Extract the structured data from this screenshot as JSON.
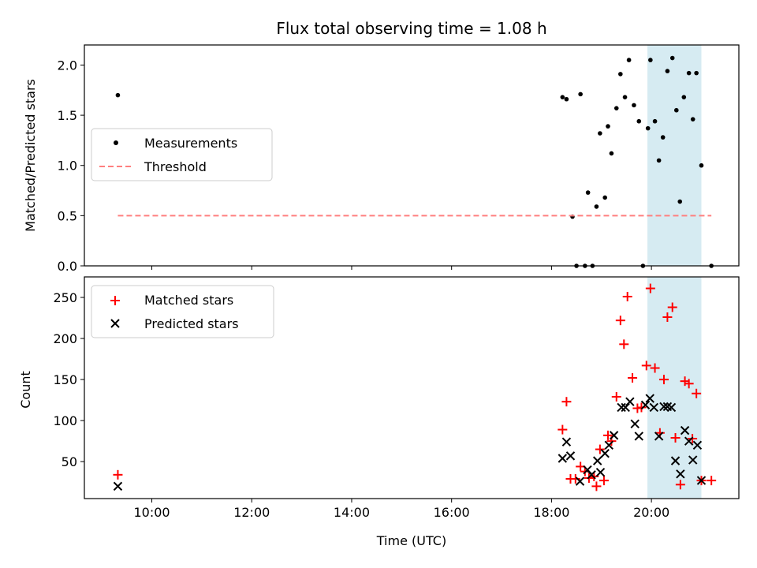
{
  "chart_data": [
    {
      "type": "scatter",
      "title": "Flux total observing time = 1.08 h",
      "xlabel": "",
      "ylabel": "Matched/Predicted stars",
      "xlim": [
        8.65,
        21.75
      ],
      "ylim": [
        0,
        2.2
      ],
      "yticks": [
        0.0,
        0.5,
        1.0,
        1.5,
        2.0
      ],
      "ytick_labels": [
        "0.0",
        "0.5",
        "1.0",
        "1.5",
        "2.0"
      ],
      "xticks": [
        10,
        12,
        14,
        16,
        18,
        20
      ],
      "shaded_span": {
        "x0": 19.92,
        "x1": 21.0,
        "color": "#add8e6"
      },
      "legend": {
        "placement": "center-left",
        "entries": [
          "Measurements",
          "Threshold"
        ]
      },
      "series": [
        {
          "name": "Measurements",
          "marker": "dot",
          "color": "#000000",
          "points": [
            [
              9.32,
              1.7
            ],
            [
              18.22,
              1.68
            ],
            [
              18.3,
              1.66
            ],
            [
              18.42,
              0.49
            ],
            [
              18.5,
              0.0
            ],
            [
              18.58,
              1.71
            ],
            [
              18.67,
              0.0
            ],
            [
              18.73,
              0.73
            ],
            [
              18.82,
              0.0
            ],
            [
              18.9,
              0.59
            ],
            [
              18.97,
              1.32
            ],
            [
              19.07,
              0.68
            ],
            [
              19.13,
              1.39
            ],
            [
              19.2,
              1.12
            ],
            [
              19.3,
              1.57
            ],
            [
              19.38,
              1.91
            ],
            [
              19.47,
              1.68
            ],
            [
              19.55,
              2.05
            ],
            [
              19.65,
              1.6
            ],
            [
              19.75,
              1.44
            ],
            [
              19.83,
              0.0
            ],
            [
              19.93,
              1.37
            ],
            [
              19.98,
              2.05
            ],
            [
              20.07,
              1.44
            ],
            [
              20.15,
              1.05
            ],
            [
              20.23,
              1.28
            ],
            [
              20.32,
              1.94
            ],
            [
              20.42,
              2.07
            ],
            [
              20.5,
              1.55
            ],
            [
              20.57,
              0.64
            ],
            [
              20.65,
              1.68
            ],
            [
              20.75,
              1.92
            ],
            [
              20.83,
              1.46
            ],
            [
              20.9,
              1.92
            ],
            [
              21.0,
              1.0
            ],
            [
              21.2,
              0.0
            ]
          ]
        },
        {
          "name": "Threshold",
          "marker": "dashed-line",
          "color": "#ff7f7f",
          "points": [
            [
              9.32,
              0.5
            ],
            [
              21.2,
              0.5
            ]
          ]
        }
      ]
    },
    {
      "type": "scatter",
      "title": "",
      "xlabel": "Time (UTC)",
      "ylabel": "Count",
      "xlim": [
        8.65,
        21.75
      ],
      "ylim": [
        5,
        275
      ],
      "yticks": [
        50,
        100,
        150,
        200,
        250
      ],
      "ytick_labels": [
        "50",
        "100",
        "150",
        "200",
        "250"
      ],
      "xticks": [
        10,
        12,
        14,
        16,
        18,
        20
      ],
      "xtick_labels": [
        "10:00",
        "12:00",
        "14:00",
        "16:00",
        "18:00",
        "20:00"
      ],
      "shaded_span": {
        "x0": 19.92,
        "x1": 21.0,
        "color": "#add8e6"
      },
      "legend": {
        "placement": "top-left",
        "entries": [
          "Matched stars",
          "Predicted stars"
        ]
      },
      "series": [
        {
          "name": "Matched stars",
          "marker": "plus",
          "color": "#ff0000",
          "points": [
            [
              9.32,
              34
            ],
            [
              18.22,
              89
            ],
            [
              18.3,
              123
            ],
            [
              18.38,
              29
            ],
            [
              18.48,
              29
            ],
            [
              18.58,
              44
            ],
            [
              18.67,
              38
            ],
            [
              18.75,
              30
            ],
            [
              18.85,
              32
            ],
            [
              18.9,
              20
            ],
            [
              18.97,
              65
            ],
            [
              19.05,
              27
            ],
            [
              19.13,
              82
            ],
            [
              19.2,
              75
            ],
            [
              19.3,
              129
            ],
            [
              19.38,
              222
            ],
            [
              19.45,
              193
            ],
            [
              19.52,
              251
            ],
            [
              19.62,
              152
            ],
            [
              19.72,
              115
            ],
            [
              19.8,
              116
            ],
            [
              19.9,
              167
            ],
            [
              19.98,
              261
            ],
            [
              20.07,
              164
            ],
            [
              20.17,
              85
            ],
            [
              20.25,
              150
            ],
            [
              20.32,
              226
            ],
            [
              20.42,
              238
            ],
            [
              20.48,
              79
            ],
            [
              20.58,
              22
            ],
            [
              20.67,
              148
            ],
            [
              20.75,
              145
            ],
            [
              20.82,
              78
            ],
            [
              20.9,
              133
            ],
            [
              21.0,
              27
            ],
            [
              21.2,
              27
            ]
          ]
        },
        {
          "name": "Predicted stars",
          "marker": "x",
          "color": "#000000",
          "points": [
            [
              9.32,
              20
            ],
            [
              18.22,
              54
            ],
            [
              18.3,
              74
            ],
            [
              18.38,
              57
            ],
            [
              18.57,
              26
            ],
            [
              18.72,
              40
            ],
            [
              18.8,
              34
            ],
            [
              18.92,
              51
            ],
            [
              18.98,
              37
            ],
            [
              19.07,
              60
            ],
            [
              19.15,
              70
            ],
            [
              19.25,
              82
            ],
            [
              19.4,
              116
            ],
            [
              19.48,
              116
            ],
            [
              19.57,
              123
            ],
            [
              19.67,
              96
            ],
            [
              19.75,
              81
            ],
            [
              19.88,
              119
            ],
            [
              19.97,
              127
            ],
            [
              20.05,
              116
            ],
            [
              20.15,
              81
            ],
            [
              20.25,
              117
            ],
            [
              20.32,
              117
            ],
            [
              20.4,
              116
            ],
            [
              20.48,
              51
            ],
            [
              20.58,
              35
            ],
            [
              20.67,
              88
            ],
            [
              20.75,
              75
            ],
            [
              20.83,
              52
            ],
            [
              20.92,
              70
            ],
            [
              21.0,
              27
            ]
          ]
        }
      ]
    }
  ]
}
